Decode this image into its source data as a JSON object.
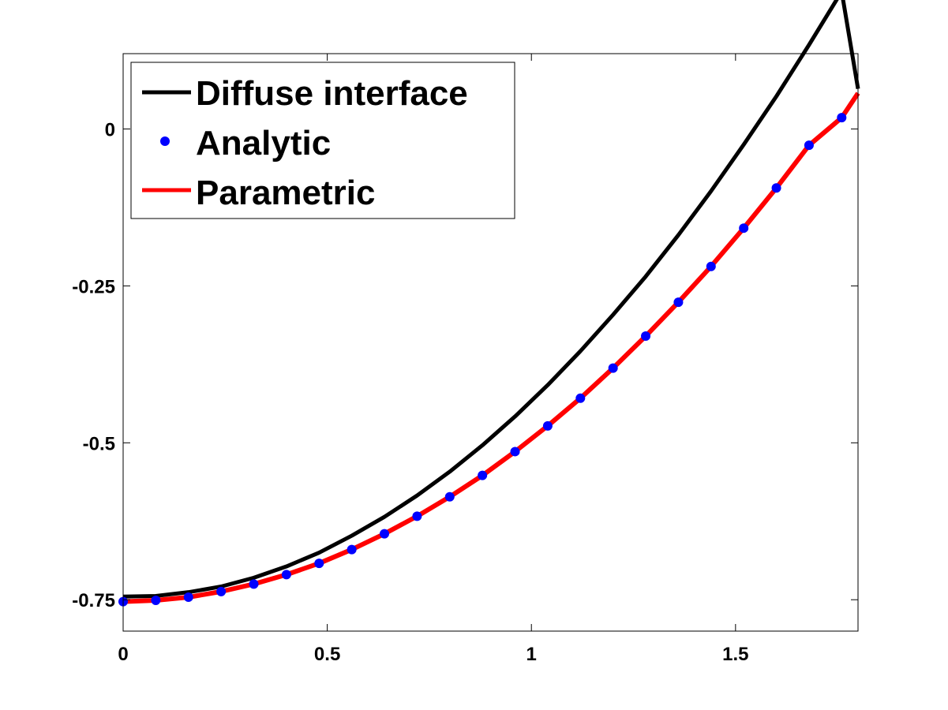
{
  "chart_data": {
    "type": "line",
    "title": "",
    "xlabel": "",
    "ylabel": "",
    "xlim": [
      0,
      1.8
    ],
    "ylim": [
      -0.8,
      0.12
    ],
    "grid": false,
    "legend_position": "top-left",
    "x_ticks": [
      {
        "value": 0,
        "label": "0"
      },
      {
        "value": 0.5,
        "label": "0.5"
      },
      {
        "value": 1,
        "label": "1"
      },
      {
        "value": 1.5,
        "label": "1.5"
      }
    ],
    "y_ticks": [
      {
        "value": 0,
        "label": "0"
      },
      {
        "value": -0.25,
        "label": "-0.25"
      },
      {
        "value": -0.5,
        "label": "-0.5"
      },
      {
        "value": -0.75,
        "label": "-0.75"
      }
    ],
    "series": [
      {
        "name": "Diffuse interface",
        "style": "line",
        "color": "#000000",
        "x": [
          0,
          0.08,
          0.16,
          0.24,
          0.32,
          0.4,
          0.48,
          0.56,
          0.64,
          0.72,
          0.8,
          0.88,
          0.96,
          1.04,
          1.12,
          1.2,
          1.28,
          1.36,
          1.44,
          1.52,
          1.6,
          1.68,
          1.76,
          1.8
        ],
        "values": [
          -0.745,
          -0.744,
          -0.738,
          -0.729,
          -0.715,
          -0.697,
          -0.675,
          -0.648,
          -0.618,
          -0.584,
          -0.546,
          -0.504,
          -0.458,
          -0.408,
          -0.354,
          -0.296,
          -0.235,
          -0.169,
          -0.099,
          -0.025,
          0.052,
          0.134,
          0.219,
          0.064
        ]
      },
      {
        "name": "Analytic",
        "style": "markers",
        "color": "#0000ff",
        "x": [
          0,
          0.08,
          0.16,
          0.24,
          0.32,
          0.4,
          0.48,
          0.56,
          0.64,
          0.72,
          0.8,
          0.88,
          0.96,
          1.04,
          1.12,
          1.2,
          1.28,
          1.36,
          1.44,
          1.52,
          1.6,
          1.68,
          1.76
        ],
        "values": [
          -0.753,
          -0.751,
          -0.746,
          -0.737,
          -0.725,
          -0.71,
          -0.692,
          -0.67,
          -0.645,
          -0.617,
          -0.586,
          -0.552,
          -0.514,
          -0.473,
          -0.429,
          -0.381,
          -0.33,
          -0.276,
          -0.219,
          -0.158,
          -0.094,
          -0.026,
          0.018
        ]
      },
      {
        "name": "Parametric",
        "style": "line",
        "color": "#ff0000",
        "x": [
          0,
          0.08,
          0.16,
          0.24,
          0.32,
          0.4,
          0.48,
          0.56,
          0.64,
          0.72,
          0.8,
          0.88,
          0.96,
          1.04,
          1.12,
          1.2,
          1.28,
          1.36,
          1.44,
          1.52,
          1.6,
          1.68,
          1.76,
          1.8
        ],
        "values": [
          -0.753,
          -0.751,
          -0.746,
          -0.737,
          -0.725,
          -0.71,
          -0.692,
          -0.67,
          -0.645,
          -0.617,
          -0.586,
          -0.552,
          -0.514,
          -0.473,
          -0.429,
          -0.381,
          -0.33,
          -0.276,
          -0.219,
          -0.158,
          -0.094,
          -0.026,
          0.018,
          0.057
        ]
      }
    ]
  }
}
